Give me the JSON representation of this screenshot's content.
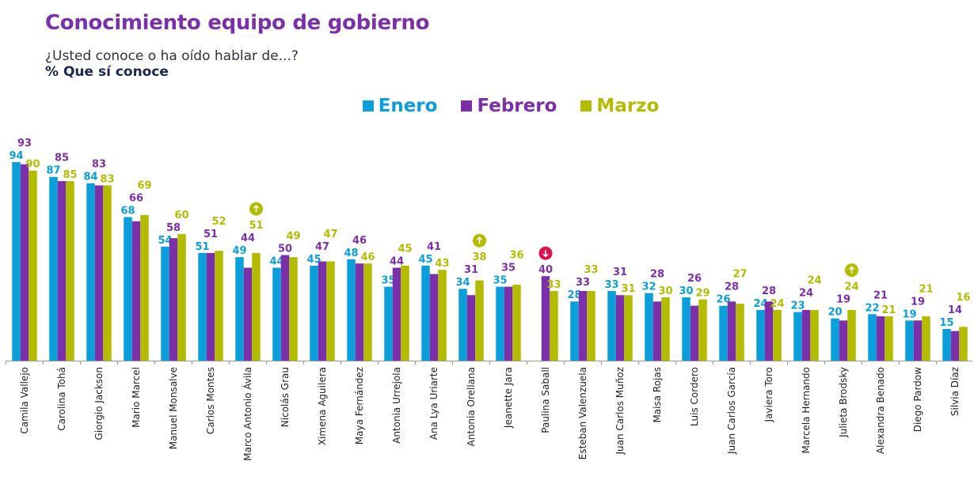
{
  "title": "Conocimiento equipo de gobierno",
  "subtitle": "¿Usted conoce o ha oído hablar de...?",
  "measure": "% Que sí conoce",
  "chart_data": {
    "type": "bar",
    "legend_position": "top",
    "grid": false,
    "ylim": [
      0,
      100
    ],
    "categories": [
      "Camila Vallejo",
      "Carolina Tohá",
      "Giorgio Jackson",
      "Mario Marcel",
      "Manuel Monsalve",
      "Carlos Montes",
      "Marco Antonio Ávila",
      "Nicolás Grau",
      "Ximena Aguilera",
      "Maya Fernández",
      "Antonia Urrejola",
      "Ana Lya Uriarte",
      "Antonia Orellana",
      "Jeanette Jara",
      "Paulina Saball",
      "Esteban Valenzuela",
      "Juan Carlos Muñoz",
      "Maisa Rojas",
      "Luis Cordero",
      "Juan Carlos García",
      "Javiera Toro",
      "Marcela Hernando",
      "Julieta Brodsky",
      "Alexandra Benado",
      "Diego Pardow",
      "Silvia Díaz"
    ],
    "series": [
      {
        "name": "Enero",
        "color": "#0a9fdb",
        "values": [
          94,
          87,
          84,
          68,
          54,
          51,
          49,
          44,
          45,
          48,
          35,
          45,
          34,
          35,
          null,
          28,
          33,
          32,
          30,
          26,
          24,
          23,
          20,
          22,
          19,
          15
        ]
      },
      {
        "name": "Febrero",
        "color": "#7b2fa8",
        "values": [
          93,
          85,
          83,
          66,
          58,
          51,
          44,
          50,
          47,
          46,
          44,
          41,
          31,
          35,
          40,
          33,
          31,
          28,
          26,
          28,
          28,
          24,
          19,
          21,
          19,
          14
        ]
      },
      {
        "name": "Marzo",
        "color": "#b3bc00",
        "values": [
          90,
          85,
          83,
          69,
          60,
          52,
          51,
          49,
          47,
          46,
          45,
          43,
          38,
          36,
          33,
          33,
          31,
          30,
          29,
          27,
          24,
          24,
          24,
          21,
          21,
          16
        ]
      }
    ],
    "annotations": [
      {
        "category": "Marco Antonio Ávila",
        "icon": "arrow-up-icon",
        "color": "#b3bc00"
      },
      {
        "category": "Antonia Orellana",
        "icon": "arrow-up-icon",
        "color": "#b3bc00"
      },
      {
        "category": "Paulina Saball",
        "icon": "arrow-down-icon",
        "color": "#e0104f"
      },
      {
        "category": "Julieta Brodsky",
        "icon": "arrow-up-icon",
        "color": "#b3bc00"
      }
    ]
  }
}
